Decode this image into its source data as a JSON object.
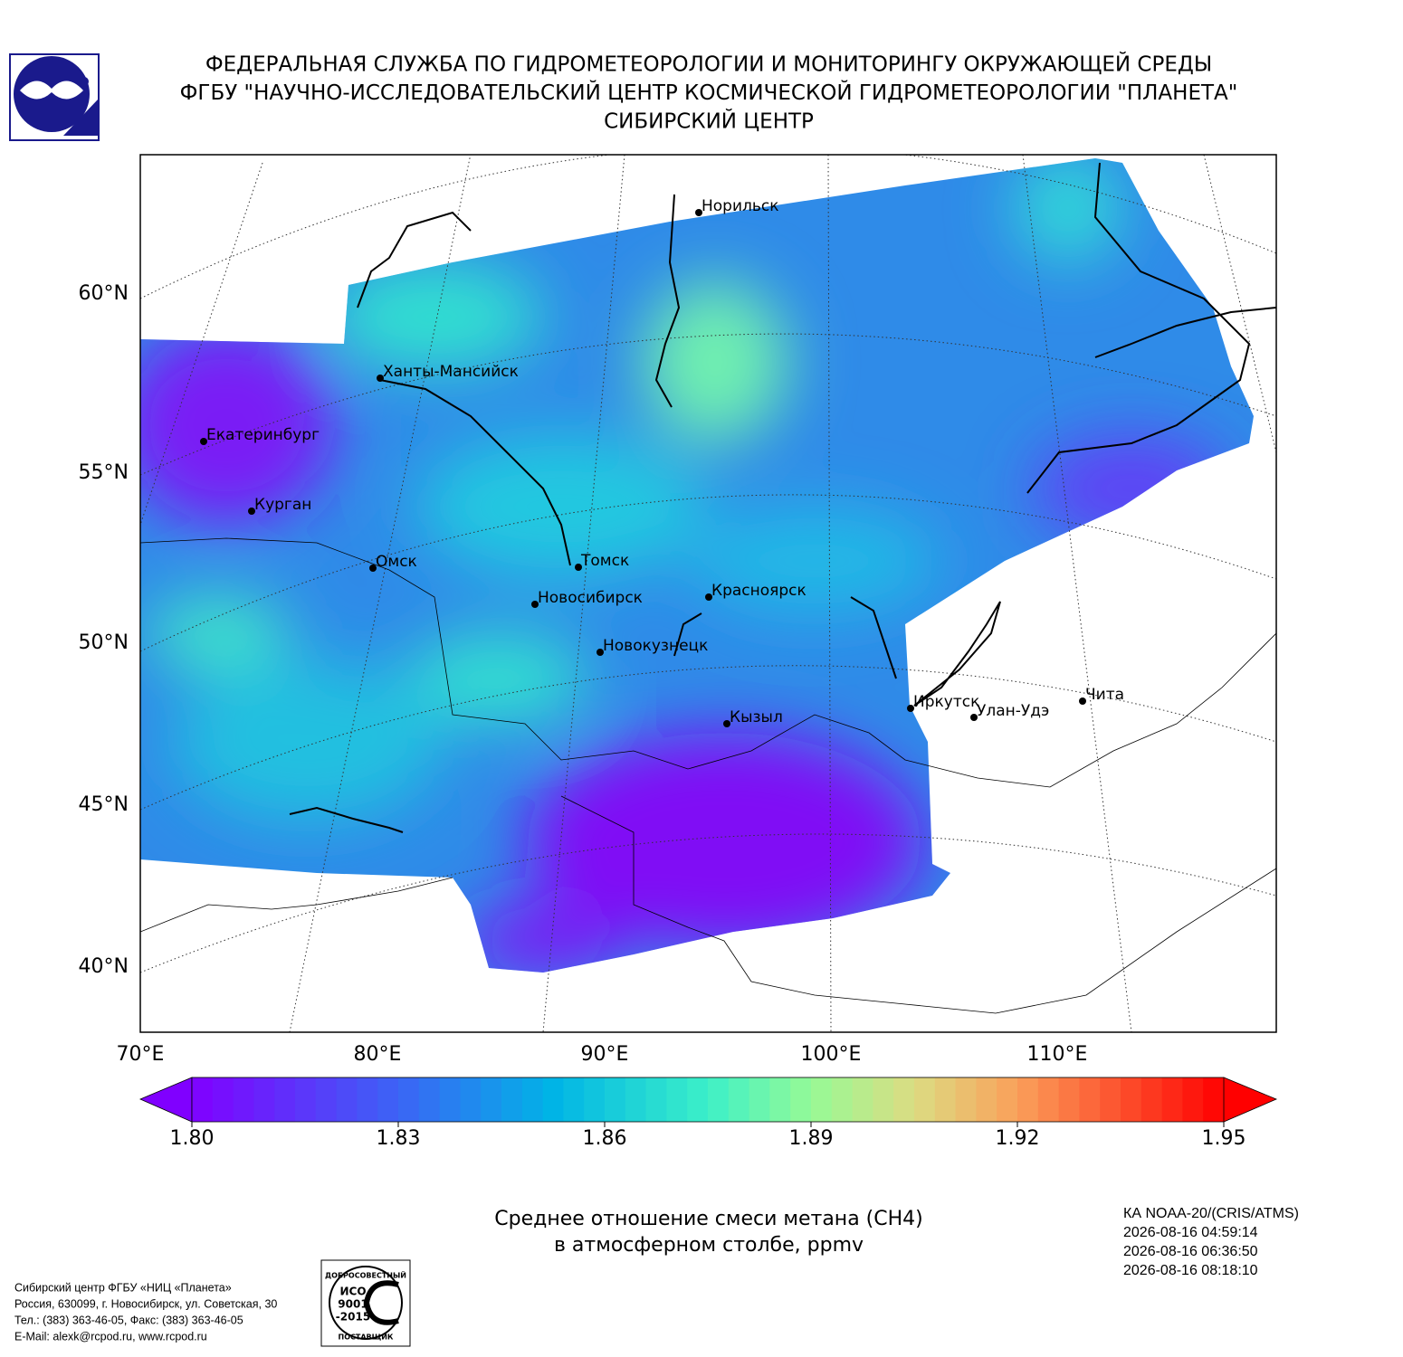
{
  "header": {
    "lines": [
      "ФЕДЕРАЛЬНАЯ СЛУЖБА ПО ГИДРОМЕТЕОРОЛОГИИ И МОНИТОРИНГУ ОКРУЖАЮЩЕЙ СРЕДЫ",
      "ФГБУ \"НАУЧНО-ИССЛЕДОВАТЕЛЬСКИЙ ЦЕНТР КОСМИЧЕСКОЙ ГИДРОМЕТЕОРОЛОГИИ \"ПЛАНЕТА\"",
      "СИБИРСКИЙ ЦЕНТР"
    ]
  },
  "map": {
    "lat_labels": [
      "60°N",
      "55°N",
      "50°N",
      "45°N",
      "40°N"
    ],
    "lon_labels": [
      "70°E",
      "80°E",
      "90°E",
      "100°E",
      "110°E"
    ],
    "cities": [
      "Норильск",
      "Ханты-Мансийск",
      "Екатеринбург",
      "Курган",
      "Омск",
      "Томск",
      "Новосибирск",
      "Красноярск",
      "Новокузнецк",
      "Кызыл",
      "Иркутск",
      "Улан-Удэ",
      "Чита"
    ]
  },
  "colorbar": {
    "range": [
      1.8,
      1.95
    ],
    "ticks": [
      {
        "value": 1.8,
        "label": "1.80"
      },
      {
        "value": 1.83,
        "label": "1.83"
      },
      {
        "value": 1.86,
        "label": "1.86"
      },
      {
        "value": 1.89,
        "label": "1.89"
      },
      {
        "value": 1.92,
        "label": "1.92"
      },
      {
        "value": 1.95,
        "label": "1.95"
      }
    ]
  },
  "caption": {
    "lines": [
      "Среднее отношение смеси метана (CH4)",
      "в атмосферном столбе, ppmv"
    ]
  },
  "satellite": {
    "lines": [
      "КА NOAA-20/(CRIS/ATMS)",
      "2026-08-16 04:59:14",
      "2026-08-16 06:36:50",
      "2026-08-16 08:18:10"
    ]
  },
  "footer": {
    "lines": [
      "Сибирский центр ФГБУ «НИЦ «Планета»",
      "Россия, 630099, г. Новосибирск, ул. Советская, 30",
      "Тел.: (383) 363-46-05, Факс: (383) 363-46-05",
      "E-Mail: alexk@rcpod.ru, www.rcpod.ru"
    ]
  },
  "iso_logo": {
    "top": "ДОБРОСОВЕСТНЫЙ",
    "lines": [
      "ИСО",
      "9001",
      "-2015"
    ],
    "bottom": "ПОСТАВЩИК"
  }
}
